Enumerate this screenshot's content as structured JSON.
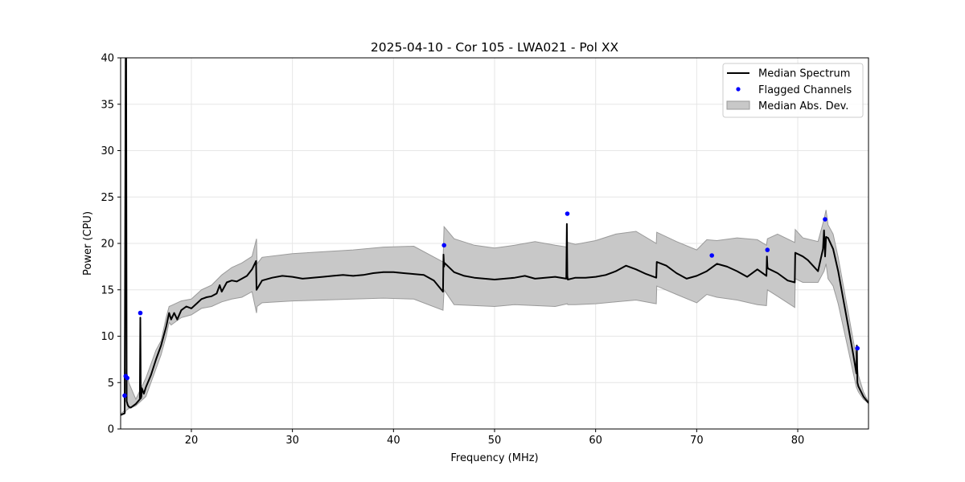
{
  "chart_data": {
    "type": "line",
    "title": "2025-04-10 - Cor 105 - LWA021 - Pol XX",
    "xlabel": "Frequency (MHz)",
    "ylabel": "Power (CPU)",
    "xlim": [
      13,
      87
    ],
    "ylim": [
      0,
      40
    ],
    "xticks": [
      20,
      30,
      40,
      50,
      60,
      70,
      80
    ],
    "yticks": [
      0,
      5,
      10,
      15,
      20,
      25,
      30,
      35,
      40
    ],
    "grid": true,
    "legend_position": "top-right",
    "colors": {
      "median": "#000000",
      "flagged": "#0000ff",
      "band_fill": "#c8c8c8",
      "band_edge": "#9a9a9a"
    },
    "legend": [
      "Median Spectrum",
      "Flagged Channels",
      "Median Abs. Dev."
    ],
    "series": [
      {
        "name": "Median Spectrum",
        "kind": "line",
        "x": [
          13.0,
          13.4,
          13.5,
          13.55,
          13.6,
          13.7,
          13.8,
          14.0,
          14.5,
          14.9,
          14.95,
          15.0,
          15.05,
          15.1,
          15.3,
          15.5,
          16.0,
          16.5,
          17.0,
          17.5,
          17.8,
          18.0,
          18.3,
          18.6,
          19.0,
          19.5,
          20.0,
          20.5,
          21.0,
          21.5,
          22.0,
          22.5,
          22.8,
          23.0,
          23.5,
          24.0,
          24.5,
          25.0,
          25.5,
          26.0,
          26.4,
          26.45,
          27.0,
          28.0,
          29.0,
          30.0,
          31.0,
          32.0,
          33.0,
          34.0,
          35.0,
          36.0,
          37.0,
          38.0,
          39.0,
          40.0,
          41.0,
          42.0,
          43.0,
          44.0,
          44.9,
          44.95,
          45.0,
          45.05,
          46.0,
          47.0,
          48.0,
          49.0,
          50.0,
          51.0,
          52.0,
          53.0,
          54.0,
          55.0,
          56.0,
          57.1,
          57.15,
          57.2,
          57.25,
          58.0,
          59.0,
          60.0,
          61.0,
          62.0,
          63.0,
          64.0,
          65.0,
          66.0,
          66.05,
          67.0,
          68.0,
          69.0,
          70.0,
          71.0,
          72.0,
          73.0,
          74.0,
          75.0,
          76.0,
          76.9,
          76.95,
          77.0,
          77.05,
          78.0,
          79.0,
          79.7,
          79.75,
          80.5,
          81.0,
          82.0,
          82.5,
          82.6,
          82.7,
          82.8,
          83.0,
          83.5,
          84.0,
          84.5,
          85.0,
          85.5,
          85.8,
          85.85,
          85.9,
          86.0,
          86.5,
          87.0
        ],
        "values": [
          1.5,
          1.7,
          40.0,
          40.0,
          3.0,
          2.6,
          2.4,
          2.3,
          2.7,
          3.2,
          12.0,
          3.3,
          3.5,
          4.4,
          3.8,
          4.5,
          5.8,
          7.5,
          9.0,
          11.0,
          12.5,
          11.8,
          12.5,
          11.8,
          12.8,
          13.2,
          13.0,
          13.5,
          14.0,
          14.2,
          14.3,
          14.6,
          15.5,
          14.8,
          15.8,
          16.0,
          15.9,
          16.2,
          16.5,
          17.2,
          18.1,
          15.0,
          16.0,
          16.3,
          16.5,
          16.4,
          16.2,
          16.3,
          16.4,
          16.5,
          16.6,
          16.5,
          16.6,
          16.8,
          16.9,
          16.9,
          16.8,
          16.7,
          16.6,
          16.0,
          14.8,
          18.8,
          17.5,
          17.9,
          16.9,
          16.5,
          16.3,
          16.2,
          16.1,
          16.2,
          16.3,
          16.5,
          16.2,
          16.3,
          16.4,
          16.2,
          22.1,
          16.5,
          16.1,
          16.3,
          16.3,
          16.4,
          16.6,
          17.0,
          17.6,
          17.2,
          16.7,
          16.3,
          18.0,
          17.6,
          16.8,
          16.2,
          16.5,
          17.0,
          17.8,
          17.5,
          17.0,
          16.4,
          17.2,
          16.5,
          18.6,
          17.5,
          17.3,
          16.8,
          16.0,
          15.8,
          19.0,
          18.6,
          18.2,
          17.0,
          19.4,
          21.4,
          18.6,
          20.7,
          20.6,
          19.4,
          17.0,
          14.0,
          11.0,
          8.0,
          6.0,
          9.0,
          5.0,
          4.6,
          3.5,
          2.8
        ]
      },
      {
        "name": "Median Abs. Dev.",
        "kind": "band",
        "x": [
          13.0,
          13.4,
          13.55,
          13.8,
          14.5,
          15.5,
          16.5,
          17.0,
          17.5,
          17.8,
          18.0,
          19.0,
          20.0,
          21.0,
          22.0,
          23.0,
          24.0,
          25.0,
          26.0,
          26.45,
          26.5,
          27.0,
          30.0,
          33.0,
          36.0,
          39.0,
          42.0,
          44.9,
          45.0,
          46.0,
          48.0,
          50.0,
          52.0,
          54.0,
          56.0,
          57.2,
          57.25,
          58.0,
          60.0,
          62.0,
          64.0,
          66.0,
          66.05,
          68.0,
          70.0,
          71.0,
          72.0,
          74.0,
          76.0,
          76.9,
          77.0,
          78.0,
          79.7,
          79.75,
          80.5,
          82.0,
          82.6,
          82.8,
          83.0,
          83.5,
          84.0,
          84.5,
          85.0,
          85.5,
          85.8,
          86.0,
          86.5,
          87.0
        ],
        "low": [
          1.5,
          1.6,
          2.0,
          2.2,
          2.5,
          3.5,
          6.5,
          8.0,
          10.0,
          11.5,
          11.2,
          12.0,
          12.3,
          13.0,
          13.2,
          13.7,
          14.0,
          14.2,
          14.8,
          12.5,
          13.2,
          13.6,
          13.8,
          13.9,
          14.0,
          14.1,
          14.0,
          12.8,
          15.0,
          13.4,
          13.3,
          13.2,
          13.4,
          13.3,
          13.2,
          13.5,
          13.4,
          13.4,
          13.5,
          13.7,
          13.9,
          13.5,
          15.4,
          14.5,
          13.6,
          14.5,
          14.2,
          13.9,
          13.4,
          13.3,
          15.0,
          14.3,
          13.1,
          16.2,
          15.8,
          15.8,
          17.0,
          17.8,
          16.2,
          15.4,
          13.5,
          11.0,
          8.5,
          6.0,
          4.5,
          4.0,
          3.2,
          2.8
        ],
        "high": [
          1.6,
          2.0,
          6.5,
          5.0,
          3.2,
          5.5,
          8.5,
          9.5,
          12.0,
          13.2,
          13.3,
          13.8,
          14.0,
          15.0,
          15.5,
          16.6,
          17.4,
          17.9,
          18.6,
          20.5,
          17.8,
          18.5,
          18.9,
          19.1,
          19.3,
          19.6,
          19.7,
          18.0,
          21.8,
          20.5,
          19.8,
          19.5,
          19.8,
          20.2,
          19.8,
          19.6,
          20.1,
          19.9,
          20.3,
          21.0,
          21.3,
          20.0,
          21.2,
          20.2,
          19.3,
          20.4,
          20.3,
          20.6,
          20.4,
          19.8,
          20.5,
          21.0,
          20.1,
          21.5,
          20.6,
          20.2,
          22.6,
          23.6,
          22.0,
          21.0,
          18.5,
          15.5,
          12.5,
          9.5,
          7.8,
          5.8,
          4.0,
          2.9
        ]
      },
      {
        "name": "Flagged Channels",
        "kind": "scatter",
        "x": [
          13.4,
          13.5,
          13.65,
          14.95,
          45.0,
          57.2,
          71.5,
          77.0,
          82.7,
          85.9
        ],
        "values": [
          3.6,
          5.7,
          5.5,
          12.5,
          19.8,
          23.2,
          18.7,
          19.3,
          22.6,
          8.7
        ]
      }
    ]
  }
}
